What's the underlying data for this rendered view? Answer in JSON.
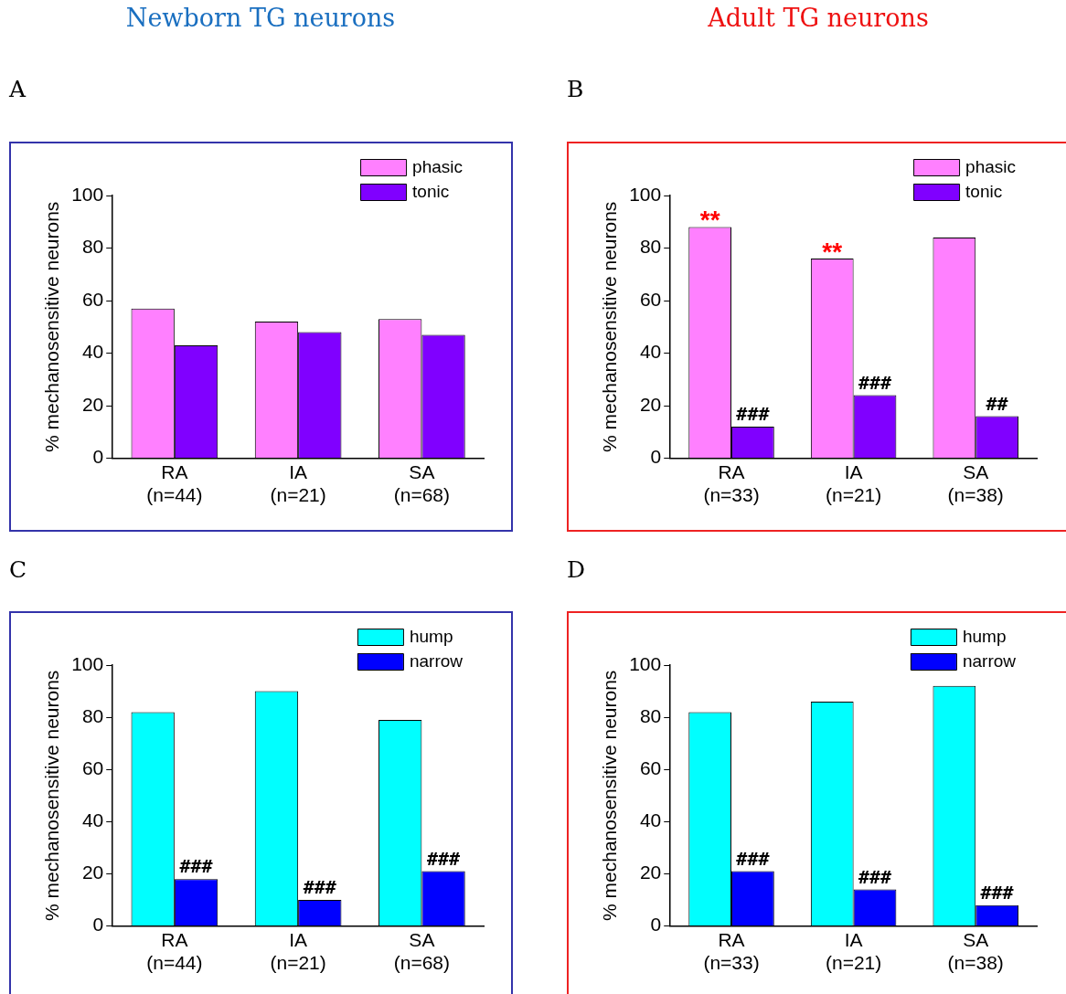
{
  "chart_data": [
    {
      "type": "bar",
      "title": "Newborn TG neurons",
      "annotations": [
        "A"
      ],
      "ylabel": "% mechanosensitive neurons",
      "categories": [
        "RA\n(n=44)",
        "IA\n(n=21)",
        "SA\n(n=68)"
      ],
      "series": [
        {
          "name": "phasic",
          "color": "#ff80ff",
          "values": [
            57,
            52,
            53
          ]
        },
        {
          "name": "tonic",
          "color": "#8000ff",
          "values": [
            43,
            48,
            47
          ]
        }
      ],
      "ylim": [
        0,
        100
      ],
      "yticks": [
        0,
        20,
        40,
        60,
        80,
        100
      ],
      "legend": "top right"
    },
    {
      "type": "bar",
      "title": "Adult TG neurons",
      "annotations": [
        "B",
        {
          "text": "**",
          "x": "RA\n(n=33)",
          "y": 88
        },
        {
          "text": "###",
          "x": "RA\n(n=33)",
          "y": 12
        },
        {
          "text": "**",
          "x": "IA\n(n=21)",
          "y": 76
        },
        {
          "text": "###",
          "x": "IA\n(n=21)",
          "y": 24
        },
        {
          "text": "##",
          "x": "SA\n(n=38)",
          "y": 16
        }
      ],
      "ylabel": "% mechanosensitive neurons",
      "categories": [
        "RA\n(n=33)",
        "IA\n(n=21)",
        "SA\n(n=38)"
      ],
      "series": [
        {
          "name": "phasic",
          "color": "#ff80ff",
          "values": [
            88,
            76,
            84
          ]
        },
        {
          "name": "tonic",
          "color": "#8000ff",
          "values": [
            12,
            24,
            16
          ]
        }
      ],
      "ylim": [
        0,
        100
      ],
      "yticks": [
        0,
        20,
        40,
        60,
        80,
        100
      ],
      "legend": "top right"
    },
    {
      "type": "bar",
      "annotations": [
        "C",
        {
          "text": "###",
          "x": "RA\n(n=44)",
          "y": 18
        },
        {
          "text": "###",
          "x": "IA\n(n=21)",
          "y": 10
        },
        {
          "text": "###",
          "x": "SA\n(n=68)",
          "y": 21
        }
      ],
      "ylabel": "% mechanosensitive neurons",
      "categories": [
        "RA\n(n=44)",
        "IA\n(n=21)",
        "SA\n(n=68)"
      ],
      "series": [
        {
          "name": "hump",
          "color": "#00ffff",
          "values": [
            82,
            90,
            79
          ]
        },
        {
          "name": "narrow",
          "color": "#0000ff",
          "values": [
            18,
            10,
            21
          ]
        }
      ],
      "ylim": [
        0,
        100
      ],
      "yticks": [
        0,
        20,
        40,
        60,
        80,
        100
      ],
      "legend": "top right"
    },
    {
      "type": "bar",
      "annotations": [
        "D",
        {
          "text": "###",
          "x": "RA\n(n=33)",
          "y": 21
        },
        {
          "text": "###",
          "x": "IA\n(n=21)",
          "y": 14
        },
        {
          "text": "###",
          "x": "SA\n(n=38)",
          "y": 8
        }
      ],
      "ylabel": "% mechanosensitive neurons",
      "categories": [
        "RA\n(n=33)",
        "IA\n(n=21)",
        "SA\n(n=38)"
      ],
      "series": [
        {
          "name": "hump",
          "color": "#00ffff",
          "values": [
            82,
            86,
            92
          ]
        },
        {
          "name": "narrow",
          "color": "#0000ff",
          "values": [
            21,
            14,
            8
          ]
        }
      ],
      "ylim": [
        0,
        100
      ],
      "yticks": [
        0,
        20,
        40,
        60,
        80,
        100
      ],
      "legend": "top right"
    }
  ]
}
